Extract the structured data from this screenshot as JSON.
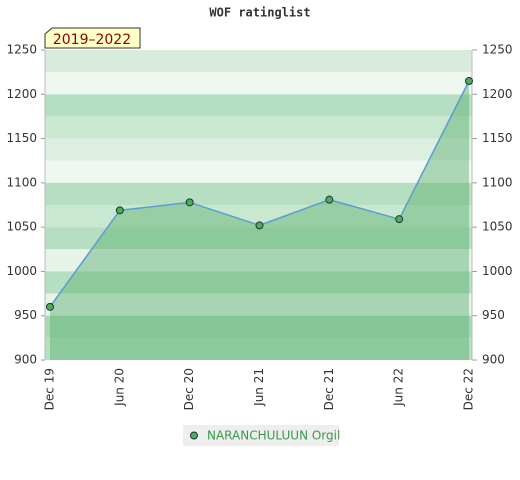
{
  "chart_data": {
    "type": "line",
    "title": "WOF ratinglist",
    "annotation": "2019–2022",
    "categories": [
      "Dec 19",
      "Jun 20",
      "Dec 20",
      "Jun 21",
      "Dec 21",
      "Jun 22",
      "Dec 22"
    ],
    "series": [
      {
        "name": "NARANCHULUUN Orgil",
        "color": "#5b9bd5",
        "values": [
          960,
          1069,
          1078,
          1052,
          1081,
          1059,
          1215
        ]
      }
    ],
    "ylim": [
      900,
      1250
    ],
    "yticks": [
      900,
      950,
      1000,
      1050,
      1100,
      1150,
      1200,
      1250
    ]
  }
}
